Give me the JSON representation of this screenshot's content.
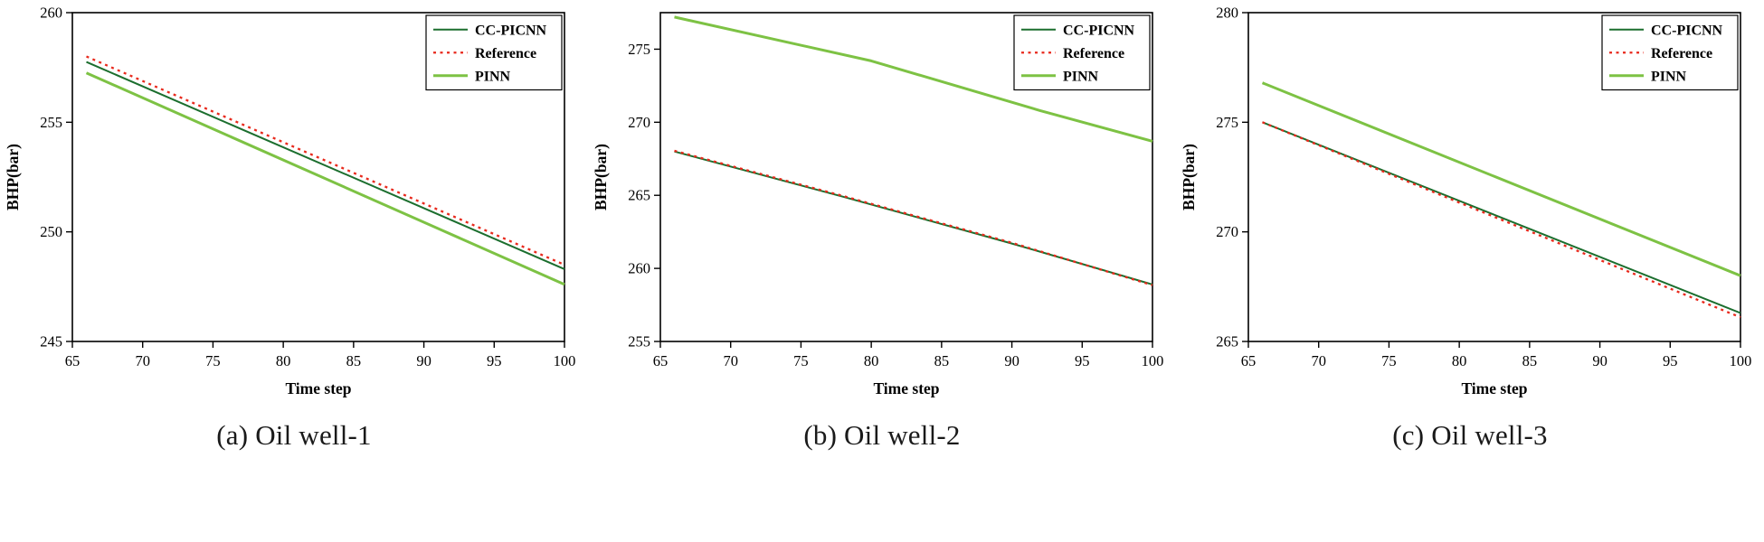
{
  "figure": {
    "type": "three-panel-line-figure",
    "panel_count": 3
  },
  "chart_data": [
    {
      "type": "line",
      "caption": "(a) Oil well-1",
      "xlabel": "Time step",
      "ylabel": "BHP(bar)",
      "xlim": [
        65,
        100
      ],
      "ylim": [
        245,
        260
      ],
      "xticks": [
        65,
        70,
        75,
        80,
        85,
        90,
        95,
        100
      ],
      "yticks": [
        245,
        250,
        255,
        260
      ],
      "legend_position": "top-right",
      "grid": false,
      "series": [
        {
          "name": "CC-PICNN",
          "color": "#1b6e2e",
          "dash": "solid",
          "width": 2,
          "x": [
            66,
            100
          ],
          "y": [
            257.75,
            248.3
          ]
        },
        {
          "name": "Reference",
          "color": "#e8291c",
          "dash": "dotted",
          "width": 2.3,
          "x": [
            66,
            100
          ],
          "y": [
            258.0,
            248.5
          ]
        },
        {
          "name": "PINN",
          "color": "#7dc244",
          "dash": "solid",
          "width": 3,
          "x": [
            66,
            100
          ],
          "y": [
            257.25,
            247.6
          ]
        }
      ]
    },
    {
      "type": "line",
      "caption": "(b) Oil well-2",
      "xlabel": "Time step",
      "ylabel": "BHP(bar)",
      "xlim": [
        65,
        100
      ],
      "ylim": [
        255,
        277.5
      ],
      "xticks": [
        65,
        70,
        75,
        80,
        85,
        90,
        95,
        100
      ],
      "yticks": [
        255,
        260,
        265,
        270,
        275
      ],
      "legend_position": "top-right",
      "grid": false,
      "series": [
        {
          "name": "CC-PICNN",
          "color": "#1b6e2e",
          "dash": "solid",
          "width": 2,
          "x": [
            66,
            78,
            90,
            100
          ],
          "y": [
            268.0,
            264.9,
            261.7,
            258.9
          ]
        },
        {
          "name": "Reference",
          "color": "#e8291c",
          "dash": "dotted",
          "width": 2.3,
          "x": [
            66,
            78,
            90,
            100
          ],
          "y": [
            268.05,
            264.95,
            261.75,
            258.85
          ]
        },
        {
          "name": "PINN",
          "color": "#7dc244",
          "dash": "solid",
          "width": 3,
          "x": [
            66,
            80,
            92,
            100
          ],
          "y": [
            277.2,
            274.2,
            270.8,
            268.7
          ]
        }
      ]
    },
    {
      "type": "line",
      "caption": "(c) Oil well-3",
      "xlabel": "Time step",
      "ylabel": "BHP(bar)",
      "xlim": [
        65,
        100
      ],
      "ylim": [
        265,
        280
      ],
      "xticks": [
        65,
        70,
        75,
        80,
        85,
        90,
        95,
        100
      ],
      "yticks": [
        265,
        270,
        275,
        280
      ],
      "legend_position": "top-right",
      "grid": false,
      "series": [
        {
          "name": "CC-PICNN",
          "color": "#1b6e2e",
          "dash": "solid",
          "width": 2,
          "x": [
            66,
            100
          ],
          "y": [
            275.0,
            266.3
          ]
        },
        {
          "name": "Reference",
          "color": "#e8291c",
          "dash": "dotted",
          "width": 2.3,
          "x": [
            66,
            100
          ],
          "y": [
            275.0,
            266.1
          ]
        },
        {
          "name": "PINN",
          "color": "#7dc244",
          "dash": "solid",
          "width": 3,
          "x": [
            66,
            100
          ],
          "y": [
            276.8,
            268.0
          ]
        }
      ]
    }
  ]
}
